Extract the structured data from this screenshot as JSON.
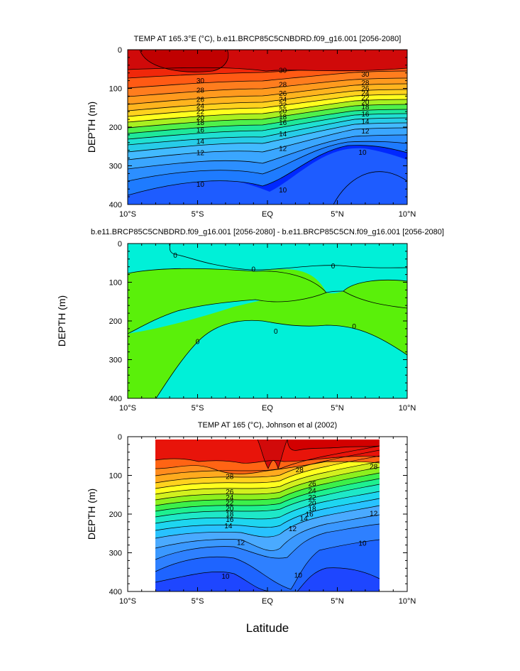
{
  "chart_data": [
    {
      "type": "contour",
      "title": "TEMP AT 165.3°E (°C), b.e11.BRCP85C5CNBDRD.f09_g16.001 [2056-2080]",
      "xlabel": "",
      "ylabel": "DEPTH (m)",
      "xlim": [
        -10,
        10
      ],
      "ylim": [
        400,
        0
      ],
      "xticks": [
        "10°S",
        "5°S",
        "EQ",
        "5°N",
        "10°N"
      ],
      "yticks": [
        "0",
        "100",
        "200",
        "300",
        "400"
      ],
      "contour_labels": [
        {
          "text": "30",
          "x": -4.8,
          "y": 80
        },
        {
          "text": "30",
          "x": 1.1,
          "y": 53
        },
        {
          "text": "30",
          "x": 7.0,
          "y": 63
        },
        {
          "text": "28",
          "x": -4.8,
          "y": 105
        },
        {
          "text": "28",
          "x": 1.1,
          "y": 90
        },
        {
          "text": "28",
          "x": 7.0,
          "y": 85
        },
        {
          "text": "26",
          "x": -4.8,
          "y": 128
        },
        {
          "text": "26",
          "x": 1.1,
          "y": 113
        },
        {
          "text": "26",
          "x": 7.0,
          "y": 100
        },
        {
          "text": "24",
          "x": -4.8,
          "y": 145
        },
        {
          "text": "24",
          "x": 1.1,
          "y": 128
        },
        {
          "text": "24",
          "x": 7.0,
          "y": 112
        },
        {
          "text": "22",
          "x": -4.8,
          "y": 160
        },
        {
          "text": "22",
          "x": 1.1,
          "y": 143
        },
        {
          "text": "22",
          "x": 7.0,
          "y": 124
        },
        {
          "text": "20",
          "x": -4.8,
          "y": 175
        },
        {
          "text": "20",
          "x": 1.1,
          "y": 158
        },
        {
          "text": "20",
          "x": 7.0,
          "y": 136
        },
        {
          "text": "18",
          "x": -4.8,
          "y": 188
        },
        {
          "text": "18",
          "x": 1.1,
          "y": 173
        },
        {
          "text": "18",
          "x": 7.0,
          "y": 148
        },
        {
          "text": "16",
          "x": -4.8,
          "y": 207
        },
        {
          "text": "16",
          "x": 1.1,
          "y": 188
        },
        {
          "text": "16",
          "x": 7.0,
          "y": 166
        },
        {
          "text": "14",
          "x": -4.8,
          "y": 237
        },
        {
          "text": "14",
          "x": 1.1,
          "y": 217
        },
        {
          "text": "14",
          "x": 7.0,
          "y": 185
        },
        {
          "text": "12",
          "x": -4.8,
          "y": 266
        },
        {
          "text": "12",
          "x": 1.1,
          "y": 255
        },
        {
          "text": "12",
          "x": 7.0,
          "y": 210
        },
        {
          "text": "10",
          "x": -4.8,
          "y": 348
        },
        {
          "text": "10",
          "x": 1.1,
          "y": 362
        },
        {
          "text": "10",
          "x": 6.8,
          "y": 265
        }
      ]
    },
    {
      "type": "contour",
      "title": "b.e11.BRCP85C5CNBDRD.f09_g16.001 [2056-2080] - b.e11.BRCP85C5CN.f09_g16.001 [2056-2080]",
      "xlabel": "",
      "ylabel": "DEPTH (m)",
      "xlim": [
        -10,
        10
      ],
      "ylim": [
        400,
        0
      ],
      "xticks": [
        "10°S",
        "5°S",
        "EQ",
        "5°N",
        "10°N"
      ],
      "yticks": [
        "0",
        "100",
        "200",
        "300",
        "400"
      ],
      "contour_labels": [
        {
          "text": "0",
          "x": -6.6,
          "y": 30
        },
        {
          "text": "0",
          "x": -1.0,
          "y": 66
        },
        {
          "text": "0",
          "x": 4.7,
          "y": 58
        },
        {
          "text": "0",
          "x": 0.6,
          "y": 227
        },
        {
          "text": "0",
          "x": 6.2,
          "y": 214
        },
        {
          "text": "0",
          "x": -5.0,
          "y": 253
        }
      ]
    },
    {
      "type": "contour",
      "title": "TEMP AT 165 (°C), Johnson et al (2002)",
      "xlabel": "Latitude",
      "ylabel": "DEPTH (m)",
      "xlim": [
        -10,
        10
      ],
      "ylim": [
        400,
        0
      ],
      "xticks": [
        "10°S",
        "5°S",
        "EQ",
        "5°N",
        "10°N"
      ],
      "yticks": [
        "0",
        "100",
        "200",
        "300",
        "400"
      ],
      "data_extent_x": [
        -8,
        8
      ],
      "data_extent_y": [
        10,
        400
      ],
      "contour_labels": [
        {
          "text": "28",
          "x": -2.7,
          "y": 103
        },
        {
          "text": "28",
          "x": 2.3,
          "y": 85
        },
        {
          "text": "28",
          "x": 7.6,
          "y": 77
        },
        {
          "text": "26",
          "x": -2.7,
          "y": 142
        },
        {
          "text": "26",
          "x": 3.2,
          "y": 121
        },
        {
          "text": "24",
          "x": -2.7,
          "y": 157
        },
        {
          "text": "24",
          "x": 3.2,
          "y": 139
        },
        {
          "text": "22",
          "x": -2.7,
          "y": 171
        },
        {
          "text": "22",
          "x": 3.2,
          "y": 157
        },
        {
          "text": "20",
          "x": -2.7,
          "y": 185
        },
        {
          "text": "20",
          "x": 3.2,
          "y": 172
        },
        {
          "text": "18",
          "x": -2.7,
          "y": 200
        },
        {
          "text": "18",
          "x": 3.2,
          "y": 186
        },
        {
          "text": "16",
          "x": -2.7,
          "y": 214
        },
        {
          "text": "16",
          "x": 3.0,
          "y": 200
        },
        {
          "text": "14",
          "x": -2.8,
          "y": 230
        },
        {
          "text": "14",
          "x": 2.6,
          "y": 211
        },
        {
          "text": "12",
          "x": -1.9,
          "y": 273
        },
        {
          "text": "12",
          "x": 1.8,
          "y": 238
        },
        {
          "text": "12",
          "x": 7.6,
          "y": 198
        },
        {
          "text": "10",
          "x": -3.0,
          "y": 361
        },
        {
          "text": "10",
          "x": 2.2,
          "y": 358
        },
        {
          "text": "10",
          "x": 6.8,
          "y": 275
        }
      ]
    }
  ]
}
